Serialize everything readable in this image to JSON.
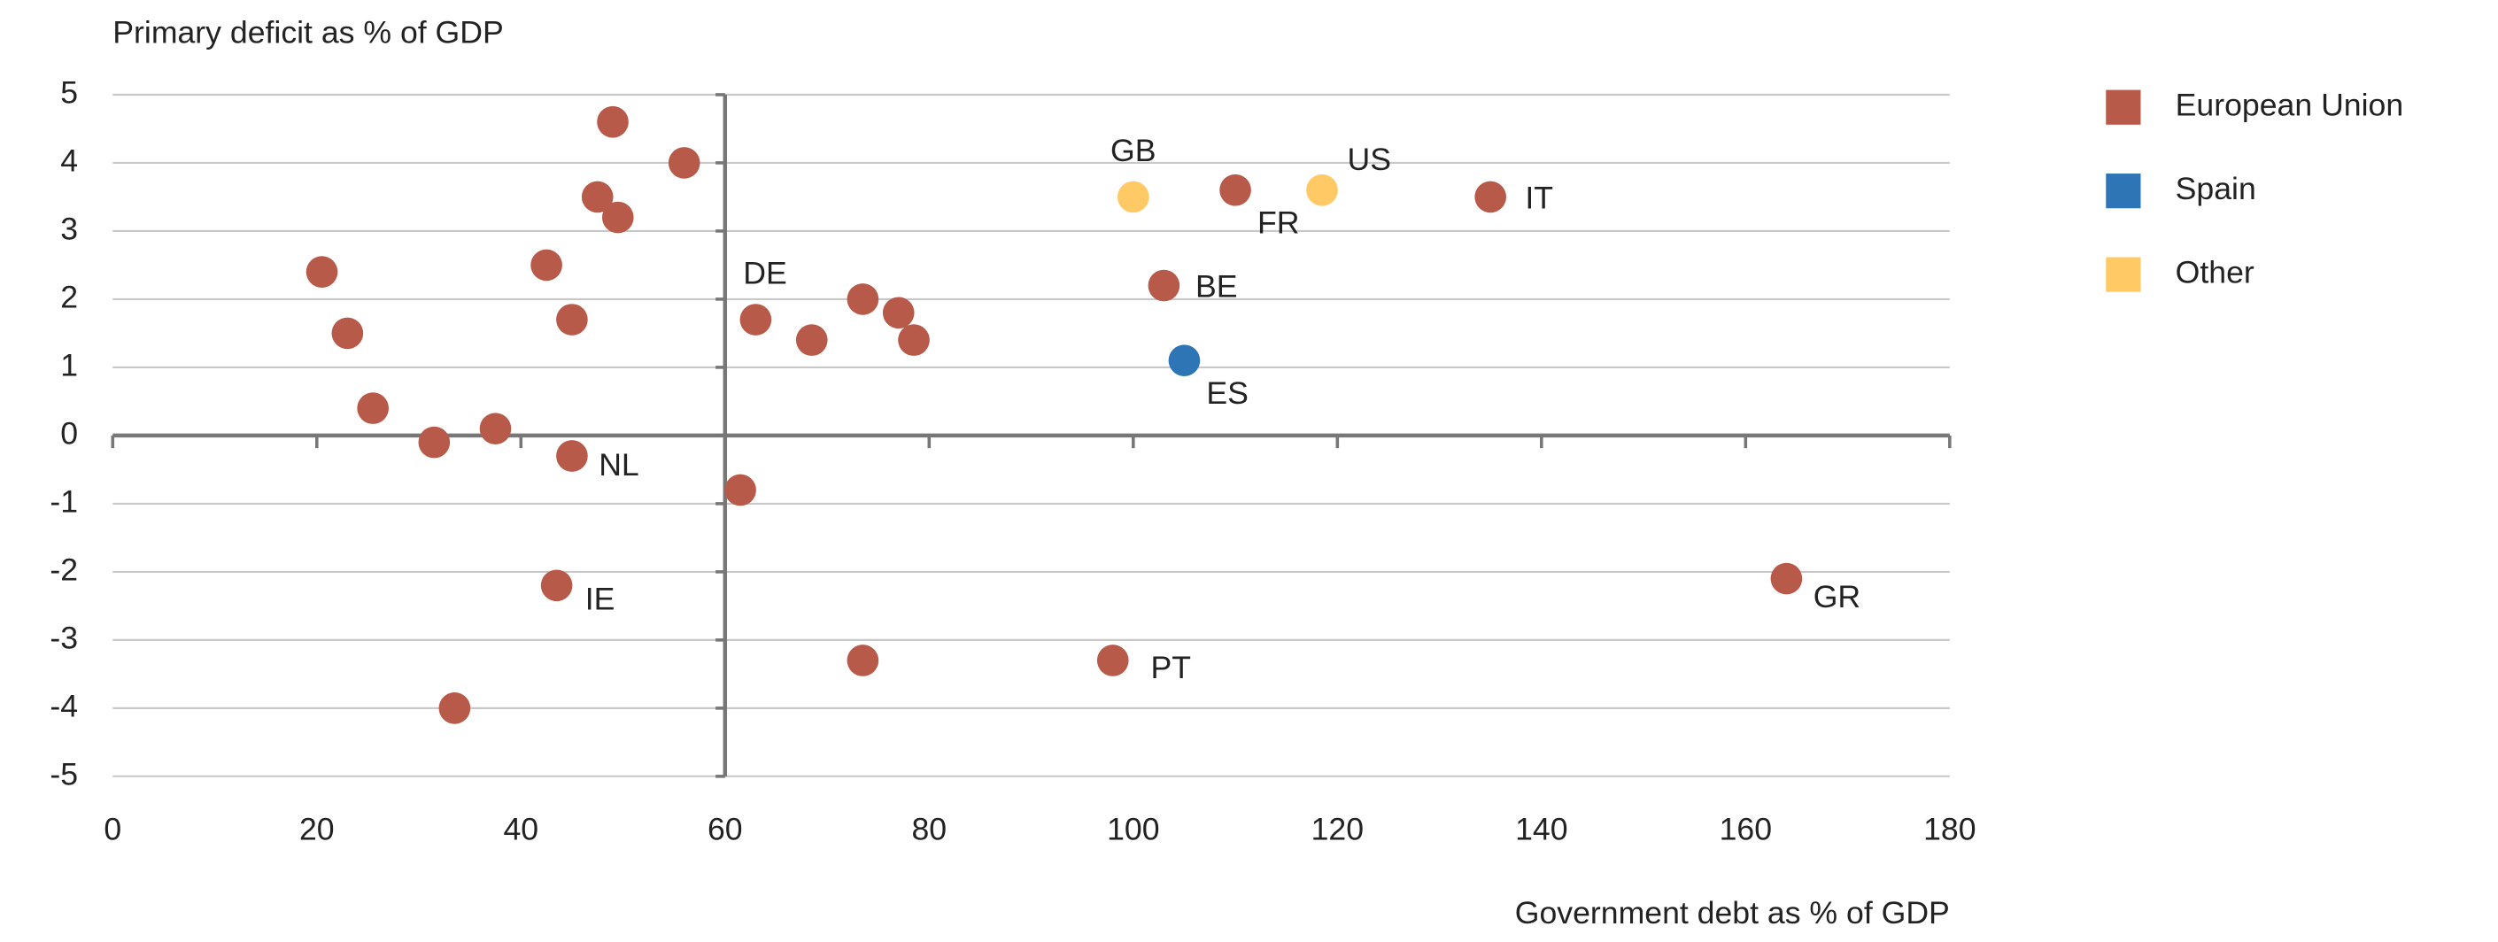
{
  "chart_data": {
    "type": "scatter",
    "y_label": "Primary deficit as % of GDP",
    "x_label": "Government debt as % of GDP",
    "xlim": [
      0,
      180
    ],
    "xticks": [
      0,
      20,
      40,
      60,
      80,
      100,
      120,
      140,
      160,
      180
    ],
    "ylim": [
      -5,
      5
    ],
    "yticks": [
      -5,
      -4,
      -3,
      -2,
      -1,
      0,
      1,
      2,
      3,
      4,
      5
    ],
    "y_axis_position": 60,
    "grid": true,
    "legend": "right",
    "series": [
      {
        "name": "European Union",
        "color": "#b85a4a",
        "x": [
          20.5,
          23,
          25.5,
          31.5,
          37.5,
          33.5,
          42.5,
          45,
          45,
          43.5,
          47.5,
          49,
          49.5,
          56,
          61.5,
          63,
          68.5,
          73.5,
          77,
          78.5,
          73.5,
          98,
          103,
          110,
          135,
          164
        ],
        "values": [
          2.4,
          1.5,
          0.4,
          -0.1,
          0.1,
          -4,
          2.5,
          1.7,
          -0.3,
          -2.2,
          3.5,
          4.6,
          3.2,
          4,
          -0.8,
          1.7,
          1.4,
          2,
          1.8,
          1.4,
          -3.3,
          -3.3,
          2.2,
          3.6,
          3.5,
          -2.1
        ],
        "labels": [
          null,
          null,
          null,
          null,
          null,
          null,
          null,
          null,
          "NL",
          "IE",
          null,
          null,
          null,
          null,
          null,
          "DE",
          null,
          null,
          null,
          null,
          null,
          "PT",
          "BE",
          "FR",
          "IT",
          "GR"
        ]
      },
      {
        "name": "Spain",
        "color": "#2e75b6",
        "x": [
          105
        ],
        "values": [
          1.1
        ],
        "labels": [
          "ES"
        ]
      },
      {
        "name": "Other",
        "color": "#ffc966",
        "x": [
          100,
          118.5
        ],
        "values": [
          3.5,
          3.6
        ],
        "labels": [
          "GB",
          "US"
        ]
      }
    ]
  }
}
